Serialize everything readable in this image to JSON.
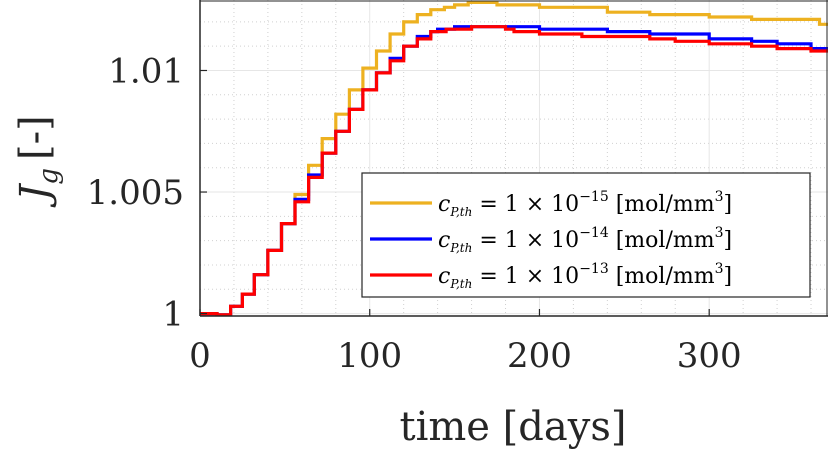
{
  "chart_data": {
    "type": "line",
    "title": "",
    "xlabel": "time [days]",
    "ylabel": "J",
    "ylabel_sub": "g",
    "ylabel_unit": "[-]",
    "xlim": [
      0,
      370
    ],
    "ylim": [
      0.9999,
      1.0129
    ],
    "xticks": [
      0,
      100,
      200,
      300
    ],
    "xtick_labels": [
      "0",
      "100",
      "200",
      "300"
    ],
    "yticks": [
      1.0,
      1.005,
      1.01
    ],
    "ytick_labels": [
      "1",
      "1.005",
      "1.01"
    ],
    "grid": true,
    "minor_grid": true,
    "legend_position": "bottom-right",
    "series": [
      {
        "name": "c_{P,th} = 1 × 10^{-15} [mol/mm^3]",
        "legend": {
          "c": "c",
          "sub": "P,th",
          "mid": " = 1 × 10",
          "exp": "−15",
          "unit": " [mol/mm",
          "unit_exp": "3",
          "close": "]"
        },
        "color": "#EDB120",
        "x": [
          0,
          10,
          10,
          18,
          18,
          25,
          25,
          32,
          32,
          40,
          40,
          48,
          48,
          56,
          56,
          64,
          64,
          72,
          72,
          80,
          80,
          88,
          88,
          96,
          96,
          104,
          104,
          112,
          112,
          120,
          120,
          128,
          128,
          136,
          136,
          144,
          144,
          150,
          150,
          158,
          158,
          175,
          175,
          180,
          180,
          200,
          200,
          225,
          225,
          240,
          240,
          265,
          265,
          280,
          280,
          300,
          300,
          325,
          325,
          340,
          340,
          365,
          365,
          370
        ],
        "y": [
          1.0,
          1.0,
          0.99995,
          0.99995,
          1.0003,
          1.0003,
          1.0008,
          1.0008,
          1.0016,
          1.0016,
          1.0026,
          1.0026,
          1.0037,
          1.0037,
          1.0049,
          1.0049,
          1.0061,
          1.0061,
          1.0072,
          1.0072,
          1.0082,
          1.0082,
          1.0092,
          1.0092,
          1.0101,
          1.0101,
          1.0108,
          1.0108,
          1.0115,
          1.0115,
          1.012,
          1.012,
          1.0123,
          1.0123,
          1.0125,
          1.0125,
          1.0126,
          1.0126,
          1.0127,
          1.0127,
          1.0128,
          1.0128,
          1.0127,
          1.0127,
          1.0127,
          1.0127,
          1.0126,
          1.0126,
          1.0126,
          1.0126,
          1.0124,
          1.0124,
          1.0123,
          1.0123,
          1.0123,
          1.0123,
          1.0122,
          1.0122,
          1.0121,
          1.0121,
          1.0121,
          1.0121,
          1.0119,
          1.0119
        ]
      },
      {
        "name": "c_{P,th} = 1 × 10^{-14} [mol/mm^3]",
        "legend": {
          "c": "c",
          "sub": "P,th",
          "mid": " = 1 × 10",
          "exp": "−14",
          "unit": " [mol/mm",
          "unit_exp": "3",
          "close": "]"
        },
        "color": "#0000FF",
        "x": [
          0,
          10,
          10,
          18,
          18,
          25,
          25,
          32,
          32,
          40,
          40,
          48,
          48,
          56,
          56,
          64,
          64,
          72,
          72,
          80,
          80,
          88,
          88,
          96,
          96,
          104,
          104,
          112,
          112,
          120,
          120,
          128,
          128,
          136,
          136,
          140,
          140,
          150,
          150,
          160,
          160,
          200,
          200,
          225,
          225,
          240,
          240,
          265,
          265,
          280,
          280,
          300,
          300,
          325,
          325,
          340,
          340,
          360,
          360,
          370
        ],
        "y": [
          1.0,
          1.0,
          0.99995,
          0.99995,
          1.0003,
          1.0003,
          1.0008,
          1.0008,
          1.0016,
          1.0016,
          1.0026,
          1.0026,
          1.0037,
          1.0037,
          1.0047,
          1.0047,
          1.0057,
          1.0057,
          1.0066,
          1.0066,
          1.0075,
          1.0075,
          1.0084,
          1.0084,
          1.0092,
          1.0092,
          1.0099,
          1.0099,
          1.0105,
          1.0105,
          1.011,
          1.011,
          1.0114,
          1.0114,
          1.0116,
          1.0116,
          1.0117,
          1.0117,
          1.0118,
          1.0118,
          1.0118,
          1.0118,
          1.0117,
          1.0117,
          1.0117,
          1.0117,
          1.0116,
          1.0116,
          1.0115,
          1.0115,
          1.0115,
          1.0115,
          1.0113,
          1.0113,
          1.0112,
          1.0112,
          1.0111,
          1.0111,
          1.0109,
          1.0109
        ]
      },
      {
        "name": "c_{P,th} = 1 × 10^{-13} [mol/mm^3]",
        "legend": {
          "c": "c",
          "sub": "P,th",
          "mid": " = 1 × 10",
          "exp": "−13",
          "unit": " [mol/mm",
          "unit_exp": "3",
          "close": "]"
        },
        "color": "#FF0000",
        "x": [
          0,
          10,
          10,
          18,
          18,
          25,
          25,
          32,
          32,
          40,
          40,
          48,
          48,
          56,
          56,
          64,
          64,
          72,
          72,
          80,
          80,
          88,
          88,
          96,
          96,
          104,
          104,
          112,
          112,
          120,
          120,
          128,
          128,
          136,
          136,
          145,
          145,
          160,
          160,
          180,
          180,
          185,
          185,
          200,
          200,
          225,
          225,
          240,
          240,
          265,
          265,
          280,
          280,
          300,
          300,
          325,
          325,
          340,
          340,
          360,
          360,
          370
        ],
        "y": [
          1.0,
          1.0,
          0.99995,
          0.99995,
          1.0003,
          1.0003,
          1.0008,
          1.0008,
          1.0016,
          1.0016,
          1.0026,
          1.0026,
          1.0037,
          1.0037,
          1.0046,
          1.0046,
          1.0056,
          1.0056,
          1.0066,
          1.0066,
          1.0075,
          1.0075,
          1.0084,
          1.0084,
          1.0092,
          1.0092,
          1.0099,
          1.0099,
          1.0104,
          1.0104,
          1.011,
          1.011,
          1.0113,
          1.0113,
          1.0116,
          1.0116,
          1.0117,
          1.0117,
          1.0118,
          1.0118,
          1.0117,
          1.0117,
          1.0116,
          1.0116,
          1.0115,
          1.0115,
          1.0114,
          1.0114,
          1.0114,
          1.0114,
          1.0113,
          1.0113,
          1.0112,
          1.0112,
          1.0111,
          1.0111,
          1.011,
          1.011,
          1.0109,
          1.0109,
          1.0108,
          1.0108
        ]
      }
    ]
  }
}
